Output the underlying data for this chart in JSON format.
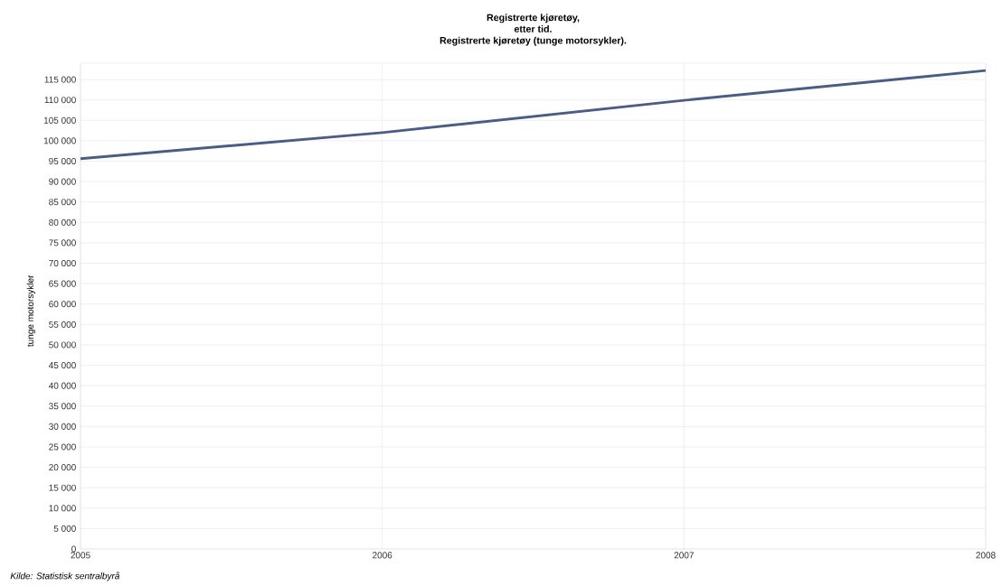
{
  "chart_data": {
    "type": "line",
    "title": "Registrerte kjøretøy, etter tid.",
    "subtitle": "Registrerte kjøretøy (tunge motorsykler).",
    "ylabel": "tunge motorsykler",
    "annotations": [
      "Kilde: Statistisk sentralbyrå"
    ],
    "x": [
      2005,
      2006,
      2007,
      2008
    ],
    "series": [
      {
        "color": "#4b5d85",
        "values": [
          95600,
          102000,
          109900,
          117200
        ]
      }
    ],
    "xlim": [
      2005,
      2008
    ],
    "xticks": [
      2005,
      2006,
      2007,
      2008
    ],
    "ylim": [
      0,
      119000
    ],
    "yticks": [
      0,
      {
        "value": 5000,
        "label": "5 000"
      },
      {
        "value": 10000,
        "label": "10 000"
      },
      {
        "value": 15000,
        "label": "15 000"
      },
      {
        "value": 20000,
        "label": "20 000"
      },
      {
        "value": 25000,
        "label": "25 000"
      },
      {
        "value": 30000,
        "label": "30 000"
      },
      {
        "value": 35000,
        "label": "35 000"
      },
      {
        "value": 40000,
        "label": "40 000"
      },
      {
        "value": 45000,
        "label": "45 000"
      },
      {
        "value": 50000,
        "label": "50 000"
      },
      {
        "value": 55000,
        "label": "55 000"
      },
      {
        "value": 60000,
        "label": "60 000"
      },
      {
        "value": 65000,
        "label": "65 000"
      },
      {
        "value": 70000,
        "label": "70 000"
      },
      {
        "value": 75000,
        "label": "75 000"
      },
      {
        "value": 80000,
        "label": "80 000"
      },
      {
        "value": 85000,
        "label": "85 000"
      },
      {
        "value": 90000,
        "label": "90 000"
      },
      {
        "value": 95000,
        "label": "95 000"
      },
      {
        "value": 100000,
        "label": "100 000"
      },
      {
        "value": 105000,
        "label": "105 000"
      },
      {
        "value": 110000,
        "label": "110 000"
      },
      {
        "value": 115000,
        "label": "115 000"
      }
    ],
    "grid": true,
    "marker": "none",
    "line_style": "solid"
  }
}
